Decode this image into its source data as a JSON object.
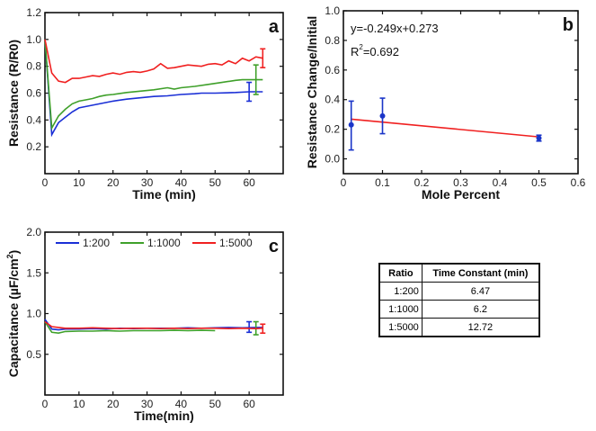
{
  "chart_data": [
    {
      "type": "line",
      "panel_label": "a",
      "xlabel": "Time (min)",
      "ylabel": "Resistance (R/R0)",
      "xlim": [
        0,
        70
      ],
      "ylim": [
        0,
        1.2
      ],
      "xticks": [
        0,
        10,
        20,
        30,
        40,
        50,
        60
      ],
      "yticks": [
        0.2,
        0.4,
        0.6,
        0.8,
        1.0,
        1.2
      ],
      "ytick_labels": [
        "0.2",
        "0.4",
        "0.6",
        "0.8",
        "1.0",
        "1.2"
      ],
      "series": [
        {
          "name": "1:200",
          "color": "#1a2fd6",
          "x": [
            0,
            2,
            4,
            6,
            8,
            10,
            12,
            16,
            20,
            24,
            28,
            32,
            36,
            40,
            44,
            46,
            50,
            56,
            60,
            64
          ],
          "y": [
            1.0,
            0.29,
            0.38,
            0.42,
            0.46,
            0.49,
            0.5,
            0.52,
            0.54,
            0.555,
            0.565,
            0.575,
            0.58,
            0.59,
            0.595,
            0.6,
            0.6,
            0.605,
            0.61,
            0.61
          ],
          "error_bar": {
            "x": 60,
            "low": 0.54,
            "high": 0.68
          }
        },
        {
          "name": "1:1000",
          "color": "#3fa02a",
          "x": [
            0,
            2,
            4,
            6,
            8,
            10,
            12,
            14,
            16,
            18,
            20,
            24,
            28,
            32,
            36,
            38,
            40,
            44,
            48,
            52,
            56,
            58,
            64
          ],
          "y": [
            1.0,
            0.34,
            0.43,
            0.48,
            0.52,
            0.54,
            0.55,
            0.56,
            0.575,
            0.585,
            0.59,
            0.605,
            0.615,
            0.625,
            0.64,
            0.63,
            0.64,
            0.65,
            0.665,
            0.68,
            0.695,
            0.7,
            0.7
          ],
          "error_bar": {
            "x": 62,
            "low": 0.59,
            "high": 0.81
          }
        },
        {
          "name": "1:5000",
          "color": "#f02020",
          "x": [
            0,
            2,
            4,
            6,
            8,
            10,
            12,
            14,
            16,
            18,
            20,
            22,
            24,
            26,
            28,
            30,
            32,
            34,
            36,
            38,
            40,
            42,
            44,
            46,
            48,
            50,
            52,
            54,
            56,
            58,
            60,
            62,
            64
          ],
          "y": [
            1.0,
            0.75,
            0.69,
            0.68,
            0.71,
            0.71,
            0.72,
            0.73,
            0.725,
            0.74,
            0.75,
            0.74,
            0.755,
            0.76,
            0.755,
            0.765,
            0.78,
            0.82,
            0.785,
            0.79,
            0.8,
            0.81,
            0.805,
            0.8,
            0.815,
            0.82,
            0.81,
            0.84,
            0.82,
            0.86,
            0.84,
            0.87,
            0.86
          ],
          "error_bar": {
            "x": 64,
            "low": 0.79,
            "high": 0.93
          }
        }
      ]
    },
    {
      "type": "scatter",
      "panel_label": "b",
      "xlabel": "Mole Percent",
      "ylabel": "Resistance Change/Initial",
      "xlim": [
        0,
        0.6
      ],
      "ylim": [
        -0.1,
        1.0
      ],
      "xticks": [
        0,
        0.1,
        0.2,
        0.3,
        0.4,
        0.5,
        0.6
      ],
      "xtick_labels": [
        "0",
        "0.1",
        "0.2",
        "0.3",
        "0.4",
        "0.5",
        "0.6"
      ],
      "yticks": [
        0,
        0.2,
        0.4,
        0.6,
        0.8,
        1.0
      ],
      "ytick_labels": [
        "0.0",
        "0.2",
        "0.4",
        "0.6",
        "0.8",
        "1.0"
      ],
      "points": [
        {
          "x": 0.02,
          "y": 0.23,
          "low": 0.06,
          "high": 0.39
        },
        {
          "x": 0.1,
          "y": 0.29,
          "low": 0.17,
          "high": 0.41
        },
        {
          "x": 0.5,
          "y": 0.14,
          "low": 0.12,
          "high": 0.16
        }
      ],
      "point_color": "#1a35c8",
      "fit": {
        "slope": -0.249,
        "intercept": 0.273,
        "x_range": [
          0.02,
          0.5
        ],
        "color": "#f02020"
      },
      "equation": "y=-0.249x+0.273",
      "r2_label": "R",
      "r2_sup": "2",
      "r2_value": "=0.692"
    },
    {
      "type": "line",
      "panel_label": "c",
      "xlabel": "Time(min)",
      "ylabel": "Capacitance (µF/cm",
      "ylabel_sup": "2",
      "ylabel_close": ")",
      "xlim": [
        0,
        70
      ],
      "ylim": [
        0,
        2.0
      ],
      "xticks": [
        0,
        10,
        20,
        30,
        40,
        50,
        60
      ],
      "yticks": [
        0.5,
        1.0,
        1.5,
        2.0
      ],
      "ytick_labels": [
        "0.5",
        "1.0",
        "1.5",
        "2.0"
      ],
      "legend_position": "top",
      "series": [
        {
          "name": "1:200",
          "color": "#1a2fd6",
          "x": [
            0,
            2,
            4,
            6,
            10,
            14,
            18,
            22,
            26,
            30,
            34,
            38,
            42,
            46,
            50,
            54,
            58,
            62,
            64
          ],
          "y": [
            0.93,
            0.81,
            0.8,
            0.81,
            0.81,
            0.815,
            0.81,
            0.82,
            0.815,
            0.82,
            0.82,
            0.82,
            0.825,
            0.82,
            0.825,
            0.83,
            0.825,
            0.83,
            0.83
          ],
          "error_bar": {
            "x": 60,
            "low": 0.77,
            "high": 0.9
          }
        },
        {
          "name": "1:1000",
          "color": "#3fa02a",
          "x": [
            0,
            2,
            4,
            6,
            10,
            14,
            18,
            22,
            26,
            30,
            34,
            38,
            42,
            46,
            50
          ],
          "y": [
            0.9,
            0.77,
            0.76,
            0.78,
            0.785,
            0.785,
            0.79,
            0.785,
            0.79,
            0.79,
            0.79,
            0.795,
            0.79,
            0.795,
            0.79
          ],
          "error_bar": {
            "x": 62,
            "low": 0.74,
            "high": 0.9
          }
        },
        {
          "name": "1:5000",
          "color": "#f02020",
          "x": [
            0,
            2,
            4,
            6,
            10,
            14,
            18,
            22,
            26,
            30,
            34,
            38,
            42,
            46,
            50,
            54,
            58,
            62,
            64
          ],
          "y": [
            0.9,
            0.84,
            0.83,
            0.82,
            0.82,
            0.825,
            0.82,
            0.815,
            0.82,
            0.82,
            0.815,
            0.82,
            0.815,
            0.82,
            0.82,
            0.815,
            0.82,
            0.815,
            0.82
          ],
          "error_bar": {
            "x": 64,
            "low": 0.76,
            "high": 0.87
          }
        }
      ]
    }
  ],
  "table": {
    "headers": [
      "Ratio",
      "Time Constant (min)"
    ],
    "rows": [
      [
        "1:200",
        "6.47"
      ],
      [
        "1:1000",
        "6.2"
      ],
      [
        "1:5000",
        "12.72"
      ]
    ]
  }
}
